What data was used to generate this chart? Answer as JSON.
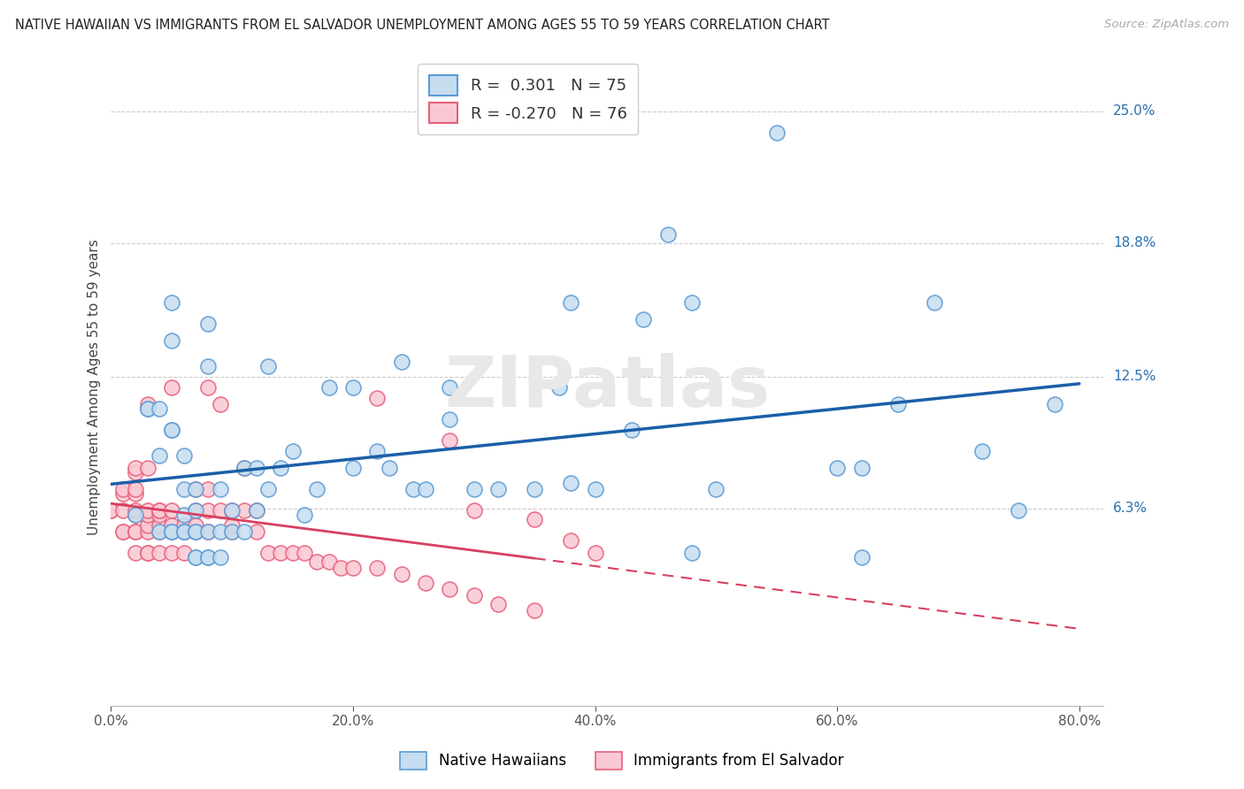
{
  "title": "NATIVE HAWAIIAN VS IMMIGRANTS FROM EL SALVADOR UNEMPLOYMENT AMONG AGES 55 TO 59 YEARS CORRELATION CHART",
  "source": "Source: ZipAtlas.com",
  "ylabel": "Unemployment Among Ages 55 to 59 years",
  "xlim": [
    0.0,
    0.82
  ],
  "ylim": [
    -0.03,
    0.27
  ],
  "yticks": [
    0.063,
    0.125,
    0.188,
    0.25
  ],
  "ytick_labels": [
    "6.3%",
    "12.5%",
    "18.8%",
    "25.0%"
  ],
  "xticks": [
    0.0,
    0.2,
    0.4,
    0.6,
    0.8
  ],
  "xtick_labels": [
    "0.0%",
    "20.0%",
    "40.0%",
    "60.0%",
    "80.0%"
  ],
  "blue_fill": "#c6ddf0",
  "blue_edge": "#5b9bd5",
  "pink_fill": "#f9c8d4",
  "pink_edge": "#e8607a",
  "blue_line": "#1a5fa8",
  "pink_line": "#d84060",
  "R_blue": 0.301,
  "N_blue": 75,
  "R_pink": -0.27,
  "N_pink": 76,
  "label_blue": "Native Hawaiians",
  "label_pink": "Immigrants from El Salvador",
  "watermark": "ZIPatlas",
  "blue_x": [
    0.02,
    0.03,
    0.03,
    0.04,
    0.04,
    0.04,
    0.05,
    0.05,
    0.05,
    0.05,
    0.05,
    0.06,
    0.06,
    0.06,
    0.06,
    0.06,
    0.07,
    0.07,
    0.07,
    0.07,
    0.07,
    0.07,
    0.08,
    0.08,
    0.08,
    0.08,
    0.09,
    0.09,
    0.09,
    0.1,
    0.1,
    0.11,
    0.11,
    0.12,
    0.12,
    0.13,
    0.14,
    0.15,
    0.16,
    0.17,
    0.18,
    0.2,
    0.22,
    0.23,
    0.24,
    0.25,
    0.26,
    0.28,
    0.3,
    0.32,
    0.35,
    0.37,
    0.38,
    0.4,
    0.43,
    0.44,
    0.46,
    0.48,
    0.5,
    0.55,
    0.6,
    0.62,
    0.65,
    0.68,
    0.72,
    0.75,
    0.78,
    0.05,
    0.08,
    0.13,
    0.2,
    0.28,
    0.38,
    0.48,
    0.62
  ],
  "blue_y": [
    0.06,
    0.11,
    0.11,
    0.11,
    0.052,
    0.088,
    0.052,
    0.052,
    0.1,
    0.1,
    0.142,
    0.052,
    0.052,
    0.06,
    0.072,
    0.088,
    0.04,
    0.04,
    0.052,
    0.052,
    0.062,
    0.072,
    0.04,
    0.04,
    0.052,
    0.13,
    0.04,
    0.052,
    0.072,
    0.052,
    0.062,
    0.052,
    0.082,
    0.062,
    0.082,
    0.072,
    0.082,
    0.09,
    0.06,
    0.072,
    0.12,
    0.082,
    0.09,
    0.082,
    0.132,
    0.072,
    0.072,
    0.12,
    0.072,
    0.072,
    0.072,
    0.12,
    0.16,
    0.072,
    0.1,
    0.152,
    0.192,
    0.16,
    0.072,
    0.24,
    0.082,
    0.082,
    0.112,
    0.16,
    0.09,
    0.062,
    0.112,
    0.16,
    0.15,
    0.13,
    0.12,
    0.105,
    0.075,
    0.042,
    0.04
  ],
  "pink_x": [
    0.0,
    0.0,
    0.01,
    0.01,
    0.01,
    0.01,
    0.01,
    0.02,
    0.02,
    0.02,
    0.02,
    0.02,
    0.02,
    0.02,
    0.02,
    0.02,
    0.03,
    0.03,
    0.03,
    0.03,
    0.03,
    0.03,
    0.03,
    0.03,
    0.04,
    0.04,
    0.04,
    0.04,
    0.04,
    0.04,
    0.05,
    0.05,
    0.05,
    0.05,
    0.05,
    0.06,
    0.06,
    0.06,
    0.07,
    0.07,
    0.07,
    0.07,
    0.08,
    0.08,
    0.08,
    0.08,
    0.09,
    0.09,
    0.1,
    0.1,
    0.1,
    0.11,
    0.11,
    0.12,
    0.12,
    0.13,
    0.14,
    0.15,
    0.16,
    0.17,
    0.18,
    0.19,
    0.2,
    0.22,
    0.24,
    0.26,
    0.28,
    0.3,
    0.32,
    0.35,
    0.22,
    0.28,
    0.3,
    0.35,
    0.38,
    0.4
  ],
  "pink_y": [
    0.062,
    0.062,
    0.052,
    0.052,
    0.062,
    0.07,
    0.072,
    0.042,
    0.052,
    0.052,
    0.06,
    0.062,
    0.07,
    0.072,
    0.08,
    0.082,
    0.042,
    0.042,
    0.052,
    0.055,
    0.06,
    0.062,
    0.082,
    0.112,
    0.042,
    0.052,
    0.055,
    0.06,
    0.062,
    0.062,
    0.042,
    0.052,
    0.055,
    0.062,
    0.12,
    0.042,
    0.052,
    0.055,
    0.052,
    0.055,
    0.062,
    0.072,
    0.052,
    0.062,
    0.072,
    0.12,
    0.062,
    0.112,
    0.052,
    0.055,
    0.062,
    0.062,
    0.082,
    0.052,
    0.062,
    0.042,
    0.042,
    0.042,
    0.042,
    0.038,
    0.038,
    0.035,
    0.035,
    0.035,
    0.032,
    0.028,
    0.025,
    0.022,
    0.018,
    0.015,
    0.115,
    0.095,
    0.062,
    0.058,
    0.048,
    0.042
  ]
}
